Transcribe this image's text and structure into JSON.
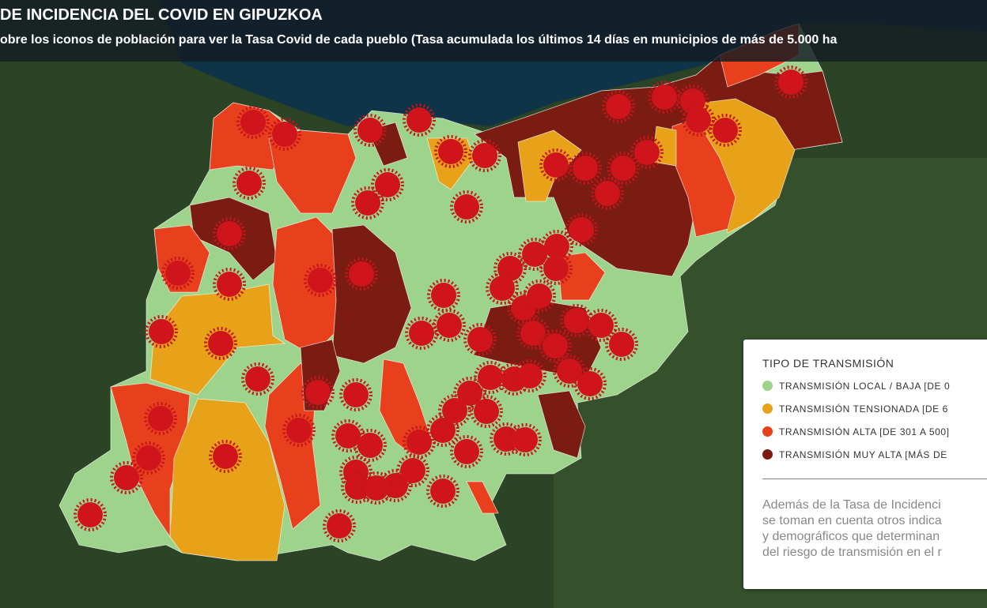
{
  "header": {
    "title": "DE INCIDENCIA DEL COVID EN GIPUZKOA",
    "subtitle": "obre los iconos de población para ver la Tasa Covid de cada pueblo (Tasa acumulada los últimos 14 días en municipios de más de 5.000 ha"
  },
  "legend": {
    "title": "TIPO DE TRANSMISIÓN",
    "items": [
      {
        "label": "TRANSMISIÓN LOCAL / BAJA [DE 0",
        "color": "#9dd38a"
      },
      {
        "label": "TRANSMISIÓN TENSIONADA [DE 6",
        "color": "#e8a21a"
      },
      {
        "label": "TRANSMISIÓN ALTA [DE 301 A 500]",
        "color": "#e8401c"
      },
      {
        "label": "TRANSMISIÓN MUY ALTA [MÁS DE",
        "color": "#7b1c12"
      }
    ],
    "note": [
      "Además de la Tasa de Incidenci",
      "se toman en cuenta otros indica",
      "y demográficos que determinan",
      "del riesgo de transmisión en el r"
    ]
  }
}
